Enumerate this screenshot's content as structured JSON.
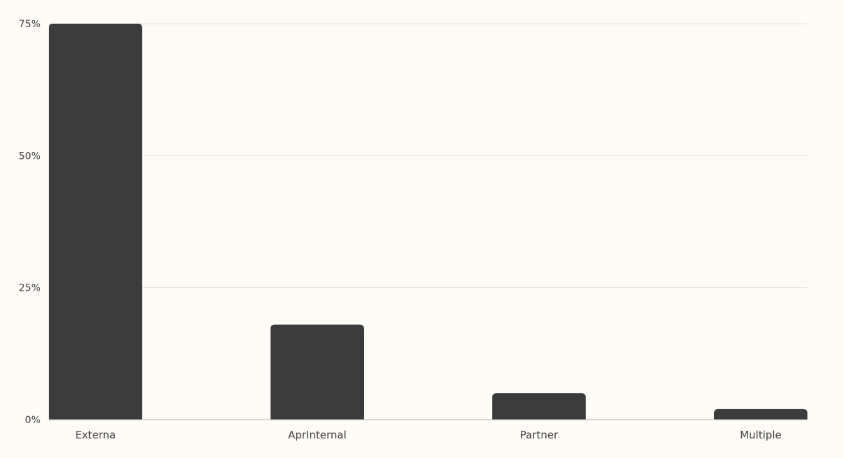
{
  "chart_data": {
    "type": "bar",
    "categories": [
      "Externa",
      "AprInternal",
      "Partner",
      "Multiple"
    ],
    "values": [
      75,
      18,
      5,
      2
    ],
    "ylim": [
      0,
      75
    ],
    "yticks": [
      0,
      25,
      50,
      75
    ],
    "ytick_labels": [
      "0%",
      "25%",
      "50%",
      "75%"
    ],
    "grid": true,
    "colors": {
      "bar": "#3b3b3b",
      "background": "#fdfbf6",
      "grid": "#e5e2dc",
      "text": "#3f3f3f"
    }
  }
}
